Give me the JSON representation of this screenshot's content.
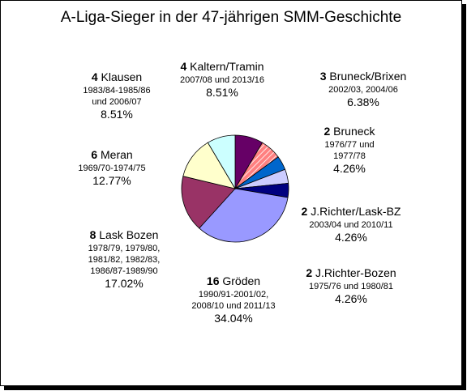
{
  "chart_data": {
    "type": "pie",
    "title": "A-Liga-Sieger  in der 47-jährigen SMM-Geschichte",
    "slices": [
      {
        "count": "4",
        "name": "Kaltern/Tramin",
        "years": [
          "2007/08 und 2013/16"
        ],
        "percent": "8.51%",
        "value": 4,
        "color": "#660066",
        "hatch": false
      },
      {
        "count": "3",
        "name": "Bruneck/Brixen",
        "years": [
          "2002/03, 2004/06"
        ],
        "percent": "6.38%",
        "value": 3,
        "color": "#ff8080",
        "hatch": true
      },
      {
        "count": "2",
        "name": "Bruneck",
        "years": [
          "1976/77 und",
          "1977/78"
        ],
        "percent": "4.26%",
        "value": 2,
        "color": "#0066cc",
        "hatch": false
      },
      {
        "count": "2",
        "name": "J.Richter/Lask-BZ",
        "years": [
          "2003/04 und 2010/11"
        ],
        "percent": "4.26%",
        "value": 2,
        "color": "#ccccff",
        "hatch": false
      },
      {
        "count": "2",
        "name": "J.Richter-Bozen",
        "years": [
          "1975/76 und 1980/81"
        ],
        "percent": "4.26%",
        "value": 2,
        "color": "#000080",
        "hatch": false
      },
      {
        "count": "16",
        "name": "Gröden",
        "years": [
          "1990/91-2001/02,",
          "2008/10 und 2011/13"
        ],
        "percent": "34.04%",
        "value": 16,
        "color": "#9999ff",
        "hatch": false
      },
      {
        "count": "8",
        "name": "Lask Bozen",
        "years": [
          "1978/79, 1979/80,",
          "1981/82, 1982/83,",
          "1986/87-1989/90"
        ],
        "percent": "17.02%",
        "value": 8,
        "color": "#993366",
        "hatch": false
      },
      {
        "count": "6",
        "name": "Meran",
        "years": [
          "1969/70-1974/75"
        ],
        "percent": "12.77%",
        "value": 6,
        "color": "#ffffcc",
        "hatch": false
      },
      {
        "count": "4",
        "name": "Klausen",
        "years": [
          "1983/84-1985/86",
          "und 2006/07"
        ],
        "percent": "8.51%",
        "value": 4,
        "color": "#ccffff",
        "hatch": false
      }
    ],
    "start_angle": 90,
    "direction": "clockwise"
  }
}
